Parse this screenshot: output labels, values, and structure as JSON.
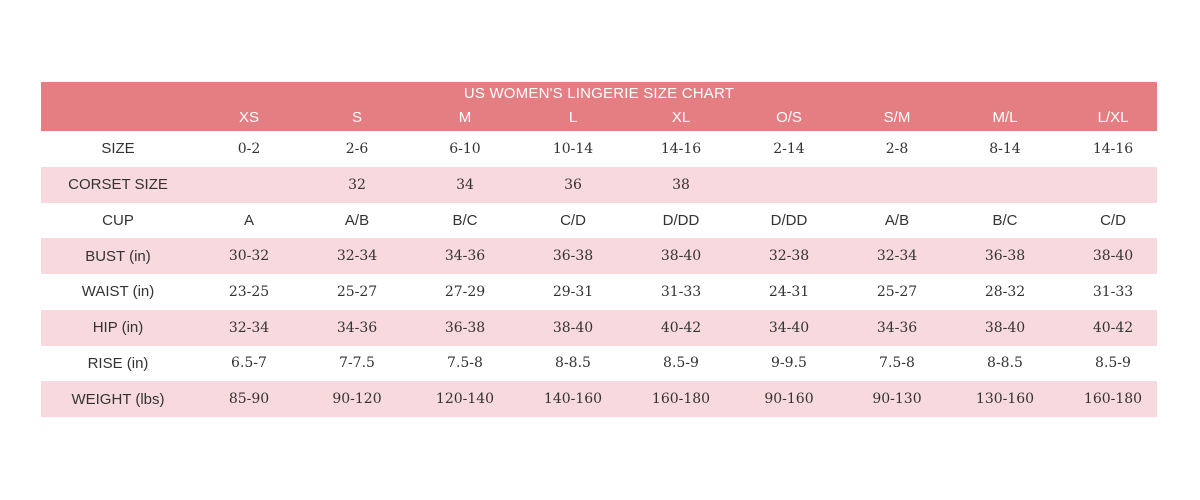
{
  "title": "US WOMEN'S LINGERIE SIZE CHART",
  "sizes": [
    "XS",
    "S",
    "M",
    "L",
    "XL",
    "O/S",
    "S/M",
    "M/L",
    "L/XL"
  ],
  "rows": [
    {
      "label": "SIZE",
      "values": [
        "0-2",
        "2-6",
        "6-10",
        "10-14",
        "14-16",
        "2-14",
        "2-8",
        "8-14",
        "14-16"
      ]
    },
    {
      "label": "CORSET SIZE",
      "values": [
        "",
        "32",
        "34",
        "36",
        "38",
        "",
        "",
        "",
        ""
      ]
    },
    {
      "label": "CUP",
      "values": [
        "A",
        "A/B",
        "B/C",
        "C/D",
        "D/DD",
        "D/DD",
        "A/B",
        "B/C",
        "C/D"
      ]
    },
    {
      "label": "BUST (in)",
      "values": [
        "30-32",
        "32-34",
        "34-36",
        "36-38",
        "38-40",
        "32-38",
        "32-34",
        "36-38",
        "38-40"
      ]
    },
    {
      "label": "WAIST (in)",
      "values": [
        "23-25",
        "25-27",
        "27-29",
        "29-31",
        "31-33",
        "24-31",
        "25-27",
        "28-32",
        "31-33"
      ]
    },
    {
      "label": "HIP (in)",
      "values": [
        "32-34",
        "34-36",
        "36-38",
        "38-40",
        "40-42",
        "34-40",
        "34-36",
        "38-40",
        "40-42"
      ]
    },
    {
      "label": "RISE (in)",
      "values": [
        "6.5-7",
        "7-7.5",
        "7.5-8",
        "8-8.5",
        "8.5-9",
        "9-9.5",
        "7.5-8",
        "8-8.5",
        "8.5-9"
      ]
    },
    {
      "label": "WEIGHT (lbs)",
      "values": [
        "85-90",
        "90-120",
        "120-140",
        "140-160",
        "160-180",
        "90-160",
        "90-130",
        "130-160",
        "160-180"
      ]
    }
  ],
  "colors": {
    "header_bg": "#e57e82",
    "pink_row_bg": "#f7d9de",
    "white_row_bg": "#ffffff",
    "text": "#333333"
  }
}
